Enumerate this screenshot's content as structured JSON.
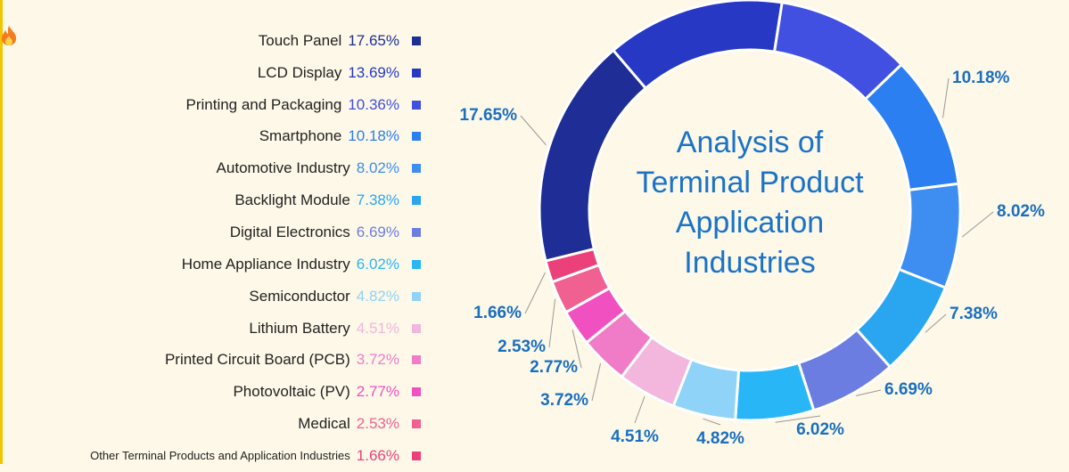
{
  "chart_data": {
    "type": "donut",
    "title": "Analysis of Terminal Product Application Industries",
    "categories": [
      "Touch Panel",
      "LCD Display",
      "Printing and Packaging",
      "Smartphone",
      "Automotive Industry",
      "Backlight Module",
      "Digital Electronics",
      "Home Appliance Industry",
      "Semiconductor",
      "Lithium Battery",
      "Printed Circuit Board (PCB)",
      "Photovoltaic (PV)",
      "Medical",
      "Other Terminal Products and Application Industries"
    ],
    "values": [
      17.65,
      13.69,
      10.36,
      10.18,
      8.02,
      7.38,
      6.69,
      6.02,
      4.82,
      4.51,
      3.72,
      2.77,
      2.53,
      1.66
    ],
    "value_labels": [
      "17.65%",
      "13.69%",
      "10.36%",
      "10.18%",
      "8.02%",
      "7.38%",
      "6.69%",
      "6.02%",
      "4.82%",
      "4.51%",
      "3.72%",
      "2.77%",
      "2.53%",
      "1.66%"
    ],
    "colors": [
      "#1e2e96",
      "#2638c4",
      "#4150e0",
      "#2b7ff0",
      "#3d8ef0",
      "#2aa6f0",
      "#6b7de0",
      "#29b6f6",
      "#8fd3f8",
      "#f3b6dc",
      "#f07cc8",
      "#f050c0",
      "#f06090",
      "#ec407a"
    ],
    "legend": "left"
  }
}
